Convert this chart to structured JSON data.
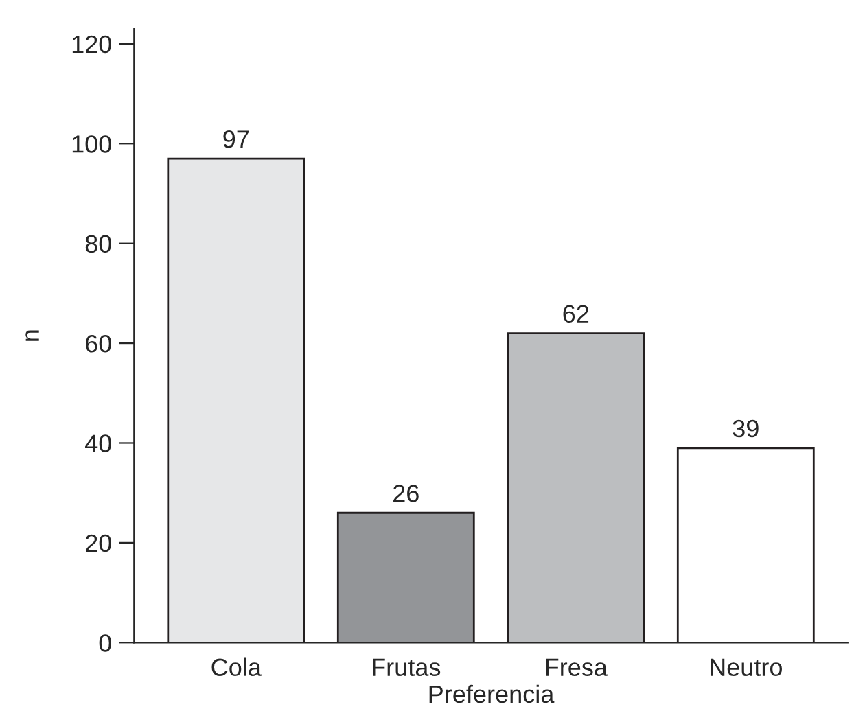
{
  "chart_data": {
    "type": "bar",
    "xlabel": "Preferencia",
    "ylabel": "n",
    "categories": [
      "Cola",
      "Frutas",
      "Fresa",
      "Neutro"
    ],
    "values": [
      97,
      26,
      62,
      39
    ],
    "colors": [
      "#e6e7e8",
      "#939598",
      "#bcbec0",
      "#ffffff"
    ],
    "data_labels": true,
    "ylim": [
      0,
      123
    ],
    "yticks": [
      0,
      20,
      40,
      60,
      80,
      100,
      120
    ],
    "grid": false,
    "legend": false
  }
}
